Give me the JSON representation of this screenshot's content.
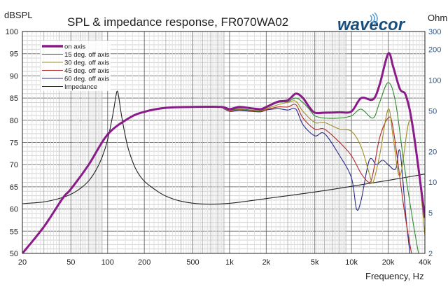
{
  "chart_data": {
    "type": "line",
    "title": "SPL & impedance response, FR070WA02",
    "brand": "wavecor",
    "ylabel": "dBSPL",
    "y2label": "Ohm",
    "xlabel": "Frequency, Hz",
    "xscale": "log",
    "xlim": [
      20,
      40000
    ],
    "ylim": [
      50,
      100
    ],
    "y2lim": [
      2,
      300
    ],
    "y2scale": "log",
    "grid": true,
    "legend_position": "top-left",
    "x_ticks": [
      {
        "v": 20,
        "label": "20"
      },
      {
        "v": 50,
        "label": "50"
      },
      {
        "v": 100,
        "label": "100"
      },
      {
        "v": 200,
        "label": "200"
      },
      {
        "v": 500,
        "label": "500"
      },
      {
        "v": 1000,
        "label": "1k"
      },
      {
        "v": 2000,
        "label": "2k"
      },
      {
        "v": 5000,
        "label": "5k"
      },
      {
        "v": 10000,
        "label": "10k"
      },
      {
        "v": 20000,
        "label": "20k"
      },
      {
        "v": 40000,
        "label": "40k"
      }
    ],
    "y_ticks": [
      "100",
      "95",
      "90",
      "85",
      "80",
      "75",
      "70",
      "65",
      "60",
      "55",
      "50"
    ],
    "y2_ticks": [
      {
        "v": 300,
        "label": "300"
      },
      {
        "v": 200,
        "label": "200"
      },
      {
        "v": 100,
        "label": "100"
      },
      {
        "v": 50,
        "label": "50"
      },
      {
        "v": 20,
        "label": "20"
      },
      {
        "v": 10,
        "label": "10"
      },
      {
        "v": 5,
        "label": "5"
      },
      {
        "v": 2,
        "label": "2"
      }
    ],
    "series": [
      {
        "name": "on axis",
        "color": "#8b1a8b",
        "width": 3,
        "axis": "left",
        "x": [
          20,
          30,
          43,
          50,
          70,
          100,
          150,
          200,
          300,
          500,
          850,
          1000,
          1200,
          1500,
          1800,
          2000,
          2500,
          3000,
          3500,
          4000,
          4500,
          5000,
          6000,
          8000,
          10000,
          12000,
          15000,
          17000,
          20000,
          22000,
          25000,
          28000,
          32000,
          40000
        ],
        "y": [
          50,
          56,
          62.5,
          64.5,
          70,
          76.8,
          80.5,
          81.9,
          82.8,
          83,
          83,
          82.5,
          83,
          82.7,
          82.5,
          83,
          84.2,
          84.5,
          86,
          85,
          83,
          81.7,
          81.7,
          81.8,
          82,
          85,
          84.7,
          88,
          95,
          92,
          87,
          85.5,
          78,
          58
        ]
      },
      {
        "name": "15 deg. off axis",
        "color": "#2e8b2e",
        "width": 1,
        "axis": "left",
        "x": [
          850,
          1000,
          1200,
          1500,
          1800,
          2000,
          2500,
          3000,
          3500,
          4000,
          4500,
          5000,
          6000,
          8000,
          10000,
          12000,
          15000,
          17000,
          20000,
          23000,
          27000,
          32000,
          36000
        ],
        "y": [
          83,
          82.3,
          82.6,
          82.3,
          82.2,
          82.8,
          84,
          84.2,
          85,
          84,
          82.5,
          81,
          80.5,
          80.5,
          81,
          82.5,
          80.5,
          84,
          88.5,
          84,
          70,
          57,
          49
        ]
      },
      {
        "name": "30 deg. off axis",
        "color": "#a09020",
        "width": 1,
        "axis": "left",
        "x": [
          850,
          1000,
          1200,
          1500,
          1800,
          2000,
          2500,
          3000,
          3500,
          4000,
          5000,
          6000,
          8000,
          10000,
          12000,
          14000,
          15000,
          17000,
          20000,
          22000,
          25000,
          30000,
          35000,
          40000
        ],
        "y": [
          83,
          82.2,
          82.5,
          82.2,
          82.1,
          82.6,
          83.5,
          84,
          84.3,
          82,
          79.5,
          79.5,
          78,
          77.5,
          74,
          68,
          66,
          72,
          82.5,
          76,
          67.5,
          80,
          70,
          54
        ]
      },
      {
        "name": "45 deg. off axis",
        "color": "#b02828",
        "width": 1,
        "axis": "left",
        "x": [
          850,
          1000,
          1200,
          1500,
          1800,
          2000,
          2500,
          3000,
          3500,
          4000,
          5000,
          6000,
          8000,
          10000,
          12000,
          14000,
          15000,
          17000,
          20000,
          22000,
          27000,
          32000
        ],
        "y": [
          83,
          82.1,
          82.4,
          82.1,
          82,
          82.4,
          83,
          83,
          83.5,
          80.5,
          78,
          78,
          75,
          72,
          68,
          66,
          68,
          76,
          80.5,
          78,
          60,
          48
        ]
      },
      {
        "name": "60 deg. off axis",
        "color": "#2a2a8a",
        "width": 1,
        "axis": "left",
        "x": [
          850,
          1000,
          1200,
          1500,
          1800,
          2000,
          2500,
          3000,
          3500,
          4000,
          5000,
          6000,
          8000,
          10000,
          11000,
          12000,
          14000,
          16000,
          18000,
          20000,
          23000,
          25000,
          28000,
          31000
        ],
        "y": [
          83,
          82,
          82.2,
          82,
          81.9,
          82.3,
          82.6,
          82.3,
          82.5,
          79,
          76.5,
          77,
          72,
          67,
          60,
          62,
          71,
          70,
          71,
          70,
          69,
          73,
          58,
          47
        ]
      },
      {
        "name": "Impedance",
        "color": "#222222",
        "width": 1,
        "axis": "right",
        "x": [
          20,
          30,
          40,
          50,
          60,
          70,
          80,
          90,
          100,
          110,
          117,
          120,
          123,
          130,
          140,
          150,
          170,
          200,
          250,
          300,
          400,
          600,
          1000,
          2000,
          5000,
          10000,
          20000,
          40000
        ],
        "y": [
          6.15,
          6.4,
          6.9,
          7.6,
          8.7,
          10.3,
          13,
          17.5,
          26,
          45,
          70,
          78,
          70,
          45,
          28,
          20,
          13.5,
          10.2,
          8.3,
          7.3,
          6.5,
          6.1,
          6.2,
          6.9,
          8.0,
          9.1,
          10.4,
          12
        ]
      }
    ]
  }
}
